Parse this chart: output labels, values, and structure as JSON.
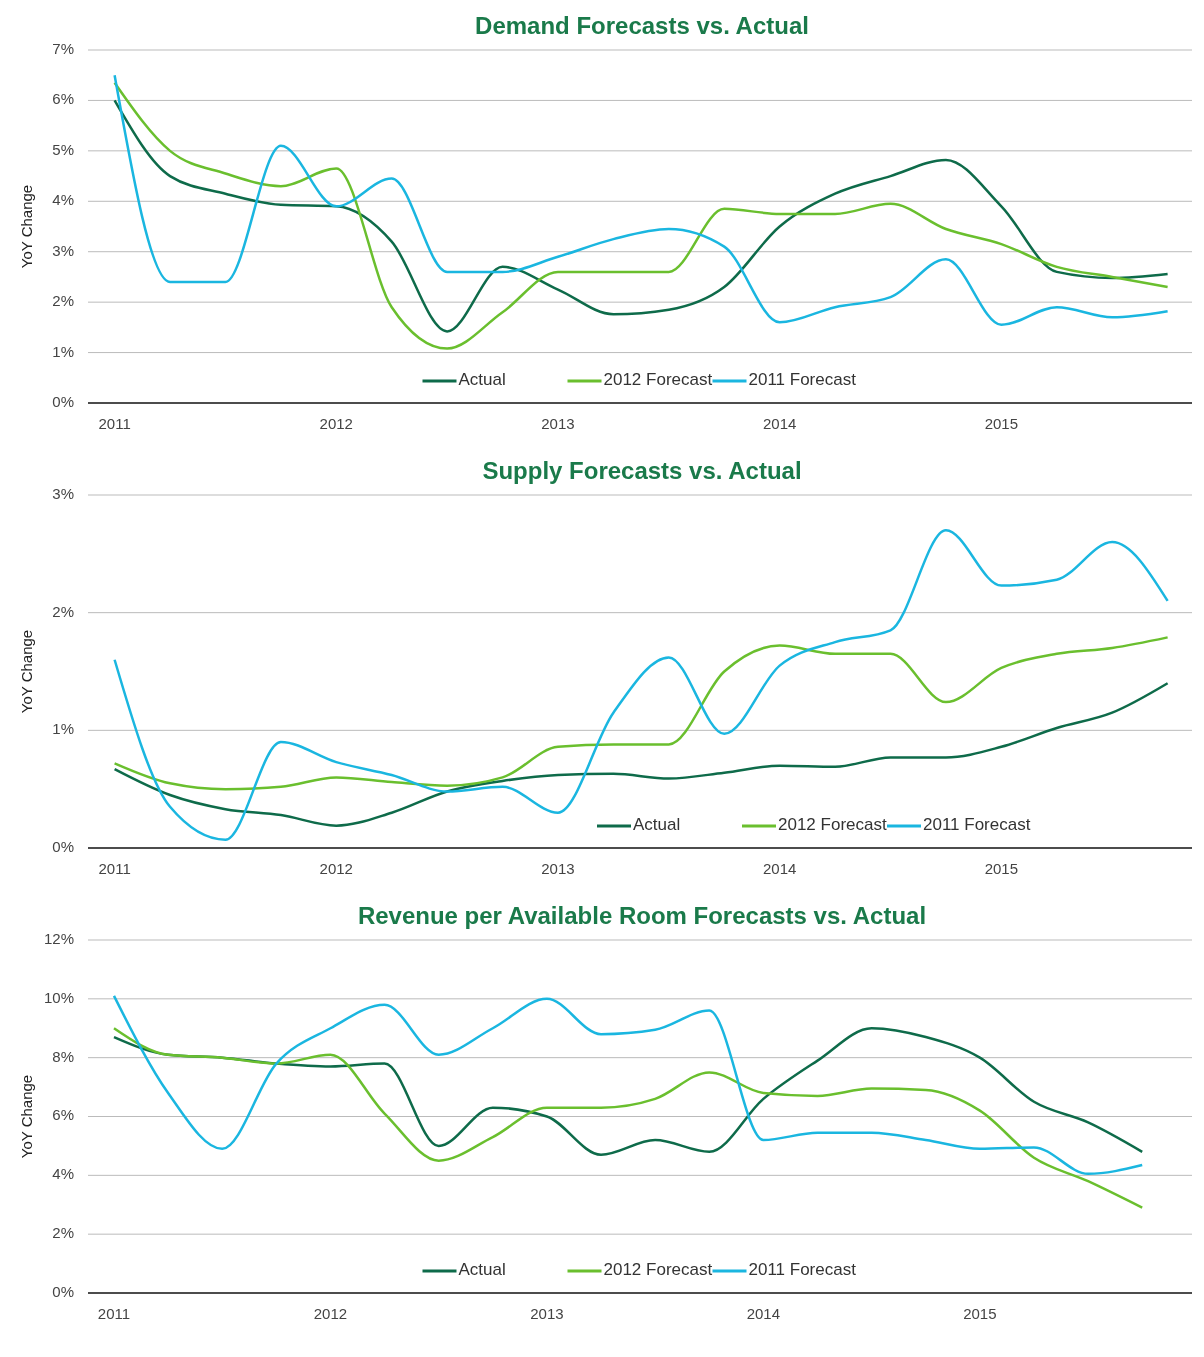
{
  "chart_data": [
    {
      "type": "line",
      "title": "Demand Forecasts vs. Actual",
      "ylabel": "YoY Change",
      "x": [
        2011,
        2011.25,
        2011.5,
        2011.75,
        2012,
        2012.25,
        2012.5,
        2012.75,
        2013,
        2013.25,
        2013.5,
        2013.75,
        2014,
        2014.25,
        2014.5,
        2014.75,
        2015,
        2015.25,
        2015.5,
        2015.75
      ],
      "xlim": [
        2010.88,
        2015.86
      ],
      "xticks": [
        2011,
        2012,
        2013,
        2014,
        2015
      ],
      "ylim": [
        0,
        7
      ],
      "yticks": [
        {
          "value": 0,
          "label": "0%"
        },
        {
          "value": 1,
          "label": "1%"
        },
        {
          "value": 2,
          "label": "2%"
        },
        {
          "value": 3,
          "label": "3%"
        },
        {
          "value": 4,
          "label": "4%"
        },
        {
          "value": 5,
          "label": "5%"
        },
        {
          "value": 6,
          "label": "6%"
        },
        {
          "value": 7,
          "label": "7%"
        }
      ],
      "grid": "y",
      "legend": "bottom",
      "series": [
        {
          "name": "Actual",
          "color": "#0e6b4a",
          "values": [
            6.0,
            4.5,
            4.15,
            3.93,
            3.9,
            3.2,
            1.42,
            2.7,
            2.25,
            1.76,
            1.85,
            2.3,
            3.5,
            4.15,
            4.5,
            4.82,
            3.9,
            2.6,
            2.48,
            2.56
          ]
        },
        {
          "name": "2012 Forecast",
          "color": "#6abf2e",
          "values": [
            6.35,
            5.0,
            4.55,
            4.3,
            4.65,
            1.9,
            1.08,
            1.8,
            2.6,
            2.6,
            2.6,
            3.85,
            3.75,
            3.75,
            3.95,
            3.45,
            3.15,
            2.7,
            2.5,
            2.3
          ]
        },
        {
          "name": "2011 Forecast",
          "color": "#1ab6e0",
          "values": [
            6.5,
            2.4,
            2.4,
            5.1,
            3.9,
            4.45,
            2.6,
            2.6,
            2.9,
            3.25,
            3.45,
            3.1,
            1.6,
            1.9,
            2.1,
            2.85,
            1.55,
            1.9,
            1.7,
            1.82
          ]
        }
      ]
    },
    {
      "type": "line",
      "title": "Supply Forecasts vs. Actual",
      "ylabel": "YoY Change",
      "x": [
        2011,
        2011.25,
        2011.5,
        2011.75,
        2012,
        2012.25,
        2012.5,
        2012.75,
        2013,
        2013.25,
        2013.5,
        2013.75,
        2014,
        2014.25,
        2014.5,
        2014.75,
        2015,
        2015.25,
        2015.5,
        2015.75
      ],
      "xlim": [
        2010.88,
        2015.86
      ],
      "xticks": [
        2011,
        2012,
        2013,
        2014,
        2015
      ],
      "ylim": [
        0,
        3
      ],
      "yticks": [
        {
          "value": 0,
          "label": "0%"
        },
        {
          "value": 1,
          "label": "1%"
        },
        {
          "value": 2,
          "label": "2%"
        },
        {
          "value": 3,
          "label": "3%"
        }
      ],
      "grid": "y",
      "legend": "bottom right",
      "series": [
        {
          "name": "Actual",
          "color": "#0e6b4a",
          "values": [
            0.67,
            0.45,
            0.33,
            0.28,
            0.19,
            0.3,
            0.48,
            0.57,
            0.62,
            0.63,
            0.59,
            0.64,
            0.7,
            0.69,
            0.77,
            0.77,
            0.86,
            1.02,
            1.15,
            1.4
          ]
        },
        {
          "name": "2012 Forecast",
          "color": "#6abf2e",
          "values": [
            0.72,
            0.55,
            0.5,
            0.52,
            0.6,
            0.56,
            0.53,
            0.6,
            0.86,
            0.88,
            0.88,
            1.5,
            1.72,
            1.65,
            1.65,
            1.24,
            1.53,
            1.65,
            1.7,
            1.79
          ]
        },
        {
          "name": "2011 Forecast",
          "color": "#1ab6e0",
          "values": [
            1.6,
            0.35,
            0.07,
            0.9,
            0.73,
            0.62,
            0.48,
            0.52,
            0.3,
            1.15,
            1.62,
            0.97,
            1.55,
            1.75,
            1.85,
            2.7,
            2.23,
            2.28,
            2.6,
            2.1
          ]
        }
      ]
    },
    {
      "type": "line",
      "title": "Revenue per Available Room Forecasts vs. Actual",
      "ylabel": "YoY Change",
      "x": [
        2011,
        2011.25,
        2011.5,
        2011.75,
        2012,
        2012.25,
        2012.5,
        2012.75,
        2013,
        2013.25,
        2013.5,
        2013.75,
        2014,
        2014.25,
        2014.5,
        2014.75,
        2015,
        2015.25,
        2015.5,
        2015.75
      ],
      "xlim": [
        2010.88,
        2015.98
      ],
      "xticks": [
        2011,
        2012,
        2013,
        2014,
        2015
      ],
      "ylim": [
        0,
        12
      ],
      "yticks": [
        {
          "value": 0,
          "label": "0%"
        },
        {
          "value": 2,
          "label": "2%"
        },
        {
          "value": 4,
          "label": "4%"
        },
        {
          "value": 6,
          "label": "6%"
        },
        {
          "value": 8,
          "label": "8%"
        },
        {
          "value": 10,
          "label": "10%"
        },
        {
          "value": 12,
          "label": "12%"
        }
      ],
      "grid": "y",
      "legend": "bottom",
      "series": [
        {
          "name": "Actual",
          "color": "#0e6b4a",
          "values": [
            8.7,
            8.1,
            8.0,
            7.8,
            7.7,
            7.8,
            5.0,
            6.3,
            6.0,
            4.7,
            5.2,
            4.8,
            6.6,
            7.9,
            9.0,
            8.7,
            8.0,
            6.5,
            5.8,
            4.8
          ]
        },
        {
          "name": "2012 Forecast",
          "color": "#6abf2e",
          "values": [
            9.0,
            8.1,
            8.0,
            7.8,
            8.1,
            6.1,
            4.5,
            5.3,
            6.3,
            6.3,
            6.6,
            7.5,
            6.8,
            6.7,
            6.95,
            6.9,
            6.2,
            4.6,
            3.8,
            2.9
          ]
        },
        {
          "name": "2011 Forecast",
          "color": "#1ab6e0",
          "values": [
            10.1,
            6.8,
            4.9,
            7.8,
            9.0,
            9.8,
            8.1,
            9.0,
            10.0,
            8.8,
            8.95,
            9.6,
            5.2,
            5.45,
            5.45,
            5.2,
            4.9,
            4.95,
            4.05,
            4.35
          ]
        }
      ]
    }
  ]
}
